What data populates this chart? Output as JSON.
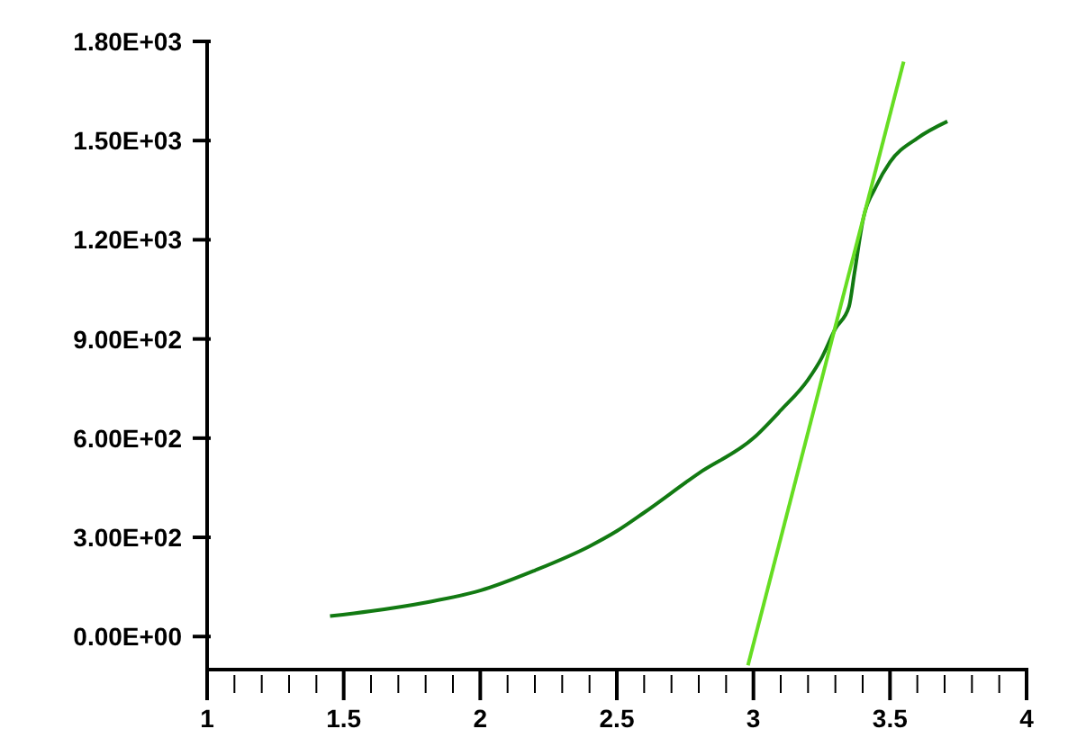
{
  "chart_data": {
    "type": "line",
    "xlim": [
      1,
      4
    ],
    "xticks": [
      1,
      {
        "value": 1.1,
        "label": null
      },
      {
        "value": 1.2,
        "label": null
      },
      {
        "value": 1.3,
        "label": null
      },
      {
        "value": 1.4,
        "label": null
      },
      1.5,
      {
        "value": 1.6,
        "label": null
      },
      {
        "value": 1.7,
        "label": null
      },
      {
        "value": 1.8,
        "label": null
      },
      {
        "value": 1.9,
        "label": null
      },
      2,
      {
        "value": 2.1,
        "label": null
      },
      {
        "value": 2.2,
        "label": null
      },
      {
        "value": 2.3,
        "label": null
      },
      {
        "value": 2.4,
        "label": null
      },
      2.5,
      {
        "value": 2.6,
        "label": null
      },
      {
        "value": 2.7,
        "label": null
      },
      {
        "value": 2.8,
        "label": null
      },
      {
        "value": 2.9,
        "label": null
      },
      3,
      {
        "value": 3.1,
        "label": null
      },
      {
        "value": 3.2,
        "label": null
      },
      {
        "value": 3.3,
        "label": null
      },
      {
        "value": 3.4,
        "label": null
      },
      3.5,
      {
        "value": 3.6,
        "label": null
      },
      {
        "value": 3.7,
        "label": null
      },
      {
        "value": 3.8,
        "label": null
      },
      {
        "value": 3.9,
        "label": null
      },
      4
    ],
    "ylim": [
      -100,
      1800
    ],
    "yticks": [
      {
        "value": 0,
        "label": "0.00E+00"
      },
      {
        "value": 300,
        "label": "3.00E+02"
      },
      {
        "value": 600,
        "label": "6.00E+02"
      },
      {
        "value": 900,
        "label": "9.00E+02"
      },
      {
        "value": 1200,
        "label": "1.20E+03"
      },
      {
        "value": 1500,
        "label": "1.50E+03"
      },
      {
        "value": 1800,
        "label": "1.80E+03"
      }
    ],
    "marker": "none",
    "line_style": "solid",
    "series": [
      {
        "color": "#127a12",
        "x": [
          1.45,
          1.6,
          1.8,
          2.0,
          2.2,
          2.4,
          2.5,
          2.6,
          2.8,
          3.0,
          3.1,
          3.2,
          3.25,
          3.3,
          3.35,
          3.37,
          3.4,
          3.45,
          3.5,
          3.6,
          3.71
        ],
        "values": [
          62,
          77,
          103,
          139,
          200,
          273,
          319,
          375,
          494,
          600,
          684,
          777,
          843,
          931,
          998,
          1100,
          1255,
          1363,
          1435,
          1507,
          1558
        ]
      },
      {
        "color": "#66dd22",
        "x": [
          2.98,
          3.55
        ],
        "values": [
          -87,
          1739
        ]
      }
    ]
  }
}
